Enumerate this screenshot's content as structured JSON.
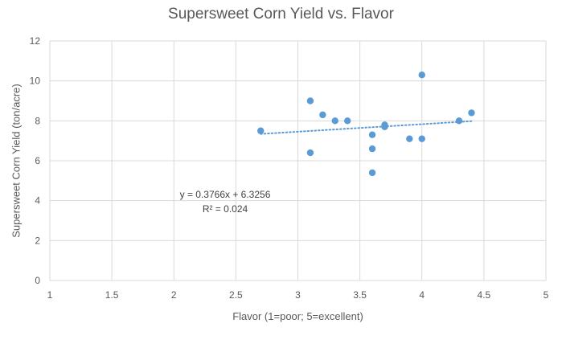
{
  "chart_data": {
    "type": "scatter",
    "title": "Supersweet Corn Yield vs. Flavor",
    "xlabel": "Flavor (1=poor; 5=excellent)",
    "ylabel": "Supersweet Corn Yield (ton/acre)",
    "xlim": [
      1,
      5
    ],
    "ylim": [
      0,
      12
    ],
    "x_ticks": [
      1,
      1.5,
      2,
      2.5,
      3,
      3.5,
      4,
      4.5,
      5
    ],
    "x_tick_labels": [
      "1",
      "1.5",
      "2",
      "2.5",
      "3",
      "3.5",
      "4",
      "4.5",
      "5"
    ],
    "y_ticks": [
      0,
      2,
      4,
      6,
      8,
      10,
      12
    ],
    "y_tick_labels": [
      "0",
      "2",
      "4",
      "6",
      "8",
      "10",
      "12"
    ],
    "grid": true,
    "legend": "none",
    "colors": {
      "points": "#5b9bd5",
      "trendline": "#5b9bd5",
      "grid": "#d9d9d9"
    },
    "series": [
      {
        "points": [
          [
            2.7,
            7.5
          ],
          [
            3.1,
            9.0
          ],
          [
            3.1,
            6.4
          ],
          [
            3.2,
            8.3
          ],
          [
            3.3,
            8.0
          ],
          [
            3.4,
            8.0
          ],
          [
            3.6,
            7.3
          ],
          [
            3.6,
            6.6
          ],
          [
            3.6,
            5.4
          ],
          [
            3.7,
            7.8
          ],
          [
            3.7,
            7.7
          ],
          [
            3.9,
            7.1
          ],
          [
            4.0,
            10.3
          ],
          [
            4.0,
            7.1
          ],
          [
            4.3,
            8.0
          ],
          [
            4.4,
            8.4
          ]
        ]
      }
    ],
    "trendline": {
      "type": "linear",
      "slope": 0.3766,
      "intercept": 6.3256,
      "x_range": [
        2.7,
        4.4
      ],
      "equation": "y = 0.3766x + 6.3256",
      "r_squared": "R² = 0.024"
    }
  }
}
